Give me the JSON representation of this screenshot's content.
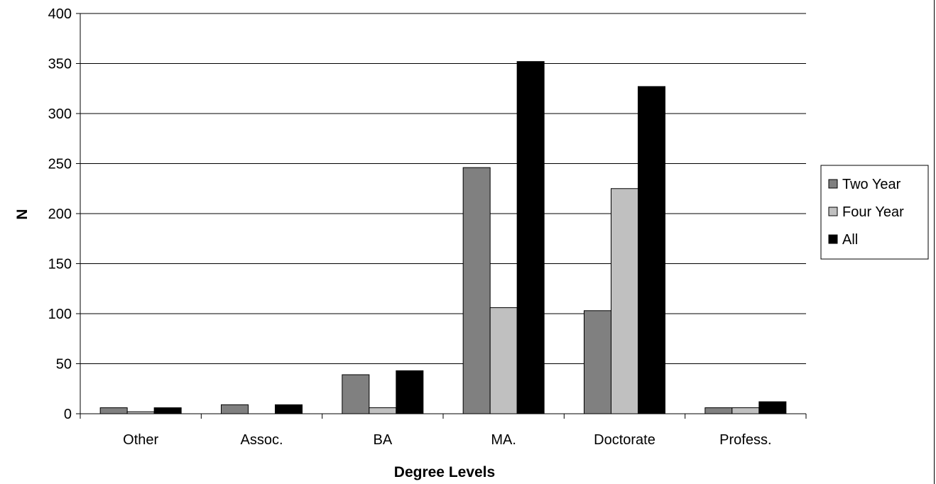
{
  "chart_data": {
    "type": "bar",
    "xlabel": "Degree Levels",
    "ylabel": "N",
    "ylim": [
      0,
      400
    ],
    "yticks": [
      "0",
      "50",
      "100",
      "150",
      "200",
      "250",
      "300",
      "350",
      "400"
    ],
    "grid": true,
    "legend_position": "right",
    "categories": [
      "Other",
      "Assoc.",
      "BA",
      "MA.",
      "Doctorate",
      "Profess."
    ],
    "series": [
      {
        "name": "Two Year",
        "color": "#808080",
        "values": [
          6,
          9,
          39,
          246,
          103,
          6
        ]
      },
      {
        "name": "Four Year",
        "color": "#c0c0c0",
        "values": [
          2,
          0,
          6,
          106,
          225,
          6
        ]
      },
      {
        "name": "All",
        "color": "#000000",
        "values": [
          6,
          9,
          43,
          352,
          327,
          12
        ]
      }
    ]
  }
}
